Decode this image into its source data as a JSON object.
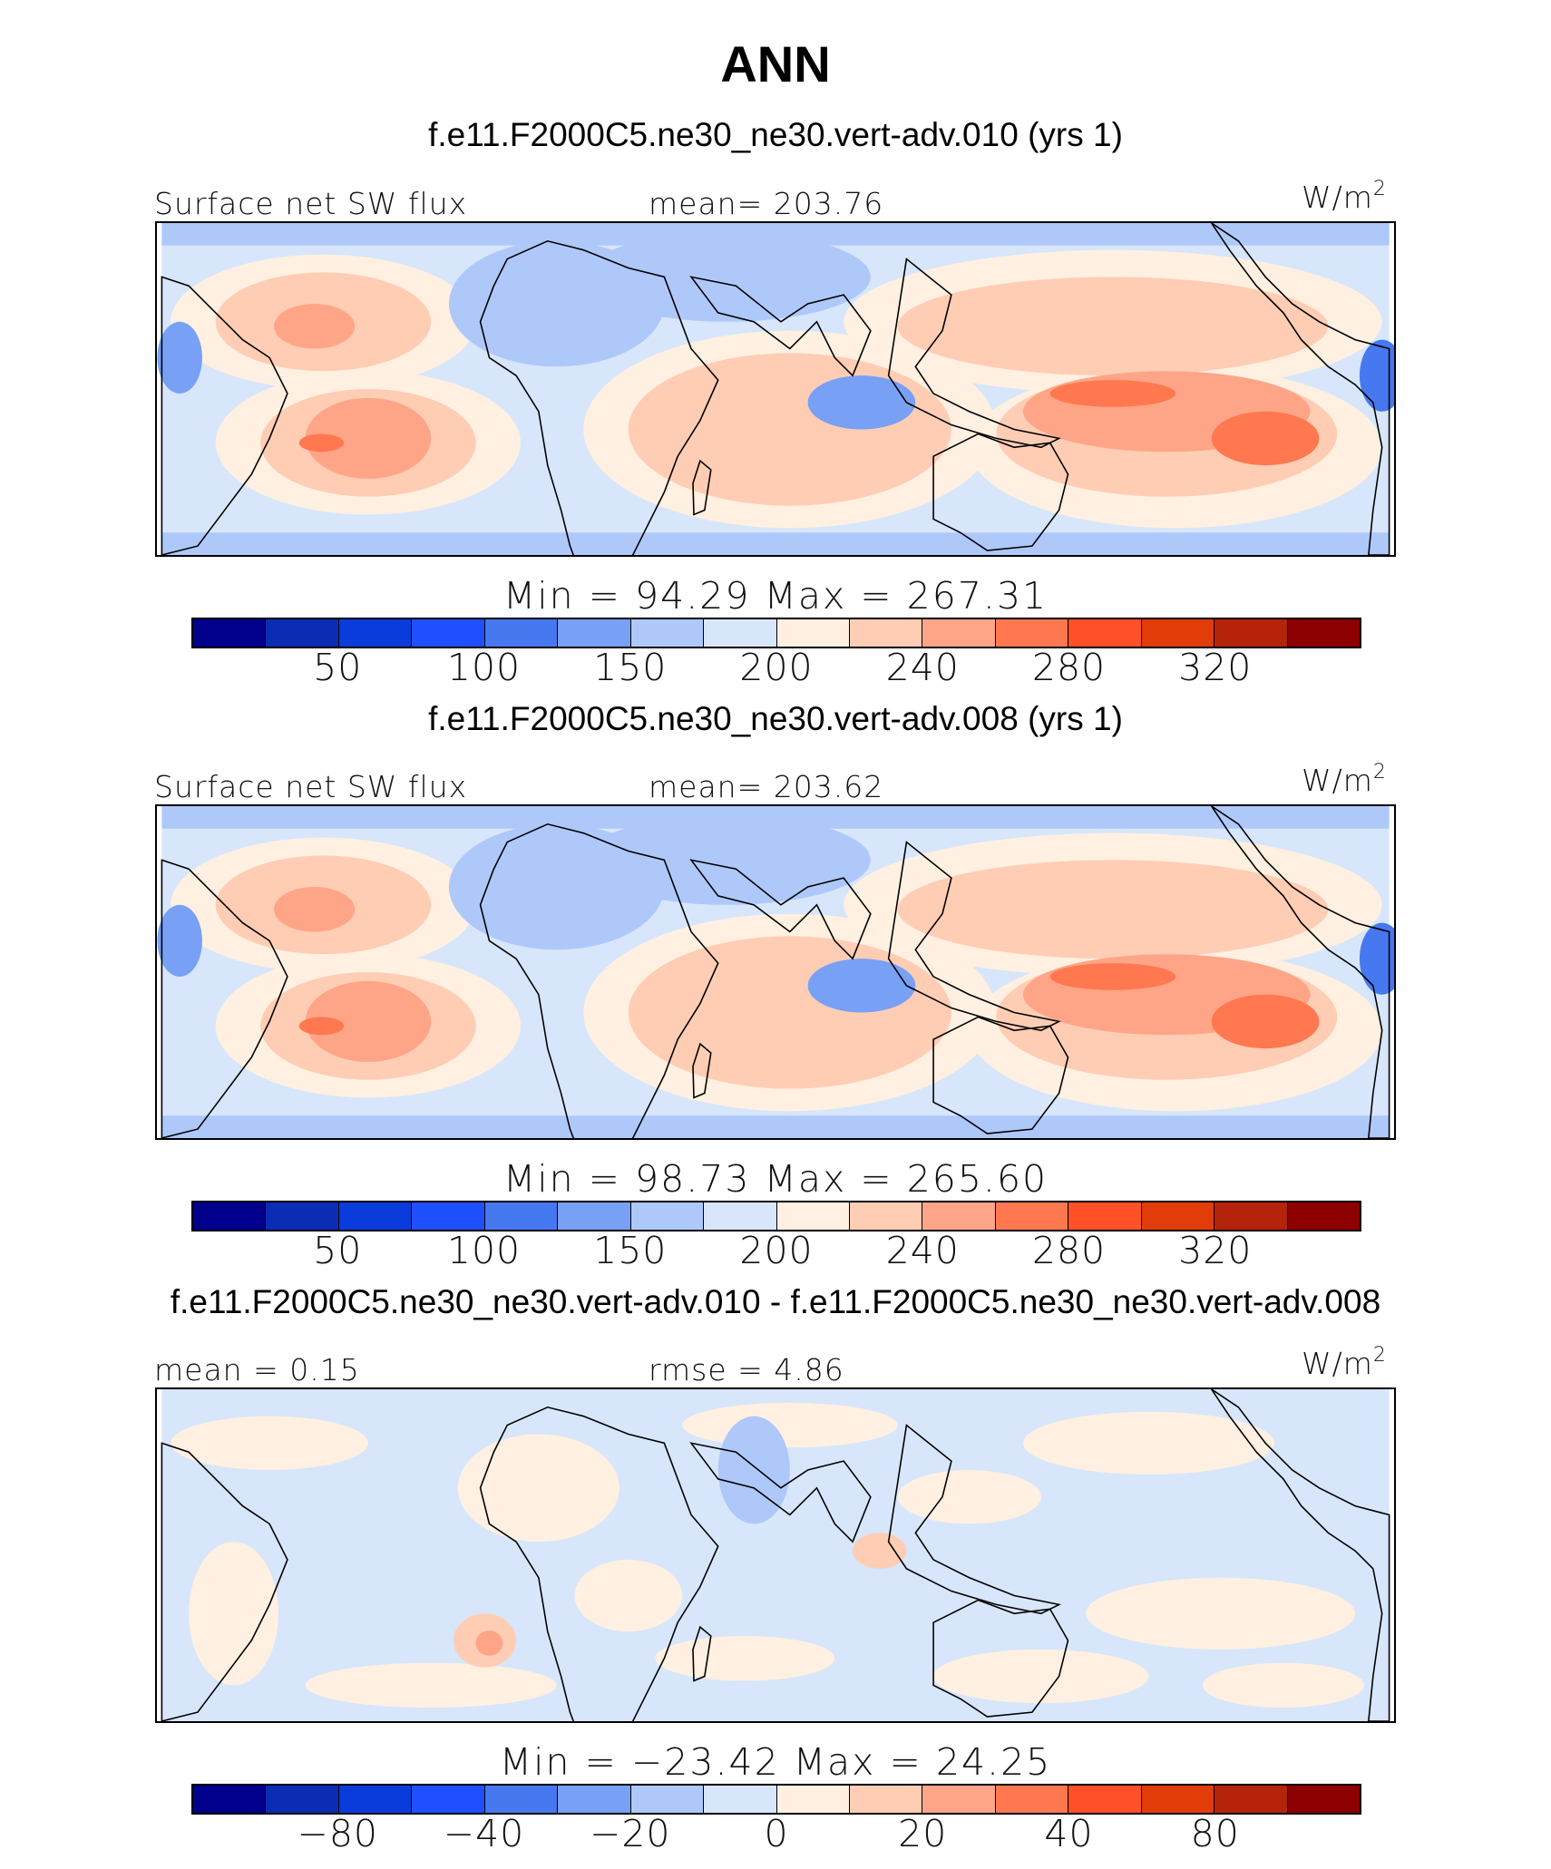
{
  "title": "ANN",
  "units_base": "W/m",
  "units_exp": "2",
  "panels": [
    {
      "title": "f.e11.F2000C5.ne30_ne30.vert-adv.010 (yrs 1)",
      "left_label": "Surface net SW flux",
      "center_label": "mean=  203.76",
      "minmax": "Min  =   94.29  Max  =  267.31",
      "ticks": [
        "50",
        "100",
        "150",
        "200",
        "240",
        "280",
        "320"
      ]
    },
    {
      "title": "f.e11.F2000C5.ne30_ne30.vert-adv.008 (yrs 1)",
      "left_label": "Surface net SW flux",
      "center_label": "mean=  203.62",
      "minmax": "Min  =   98.73  Max  =  265.60",
      "ticks": [
        "50",
        "100",
        "150",
        "200",
        "240",
        "280",
        "320"
      ]
    },
    {
      "title": "f.e11.F2000C5.ne30_ne30.vert-adv.010 - f.e11.F2000C5.ne30_ne30.vert-adv.008",
      "left_label": "mean  =    0.15",
      "center_label": "rmse  =    4.86",
      "minmax": "Min  = −23.42  Max  =   24.25",
      "ticks": [
        "−80",
        "−40",
        "−20",
        "0",
        "20",
        "40",
        "80"
      ]
    }
  ],
  "colorbar_colors": [
    "#00008c",
    "#0a2db4",
    "#0a3cdc",
    "#1e50ff",
    "#4678f0",
    "#78a0f5",
    "#afc8fa",
    "#d7e6fa",
    "#fff0e1",
    "#ffcdb4",
    "#ffa587",
    "#ff7850",
    "#ff5028",
    "#e13c0a",
    "#b4230a",
    "#8c0000"
  ]
}
